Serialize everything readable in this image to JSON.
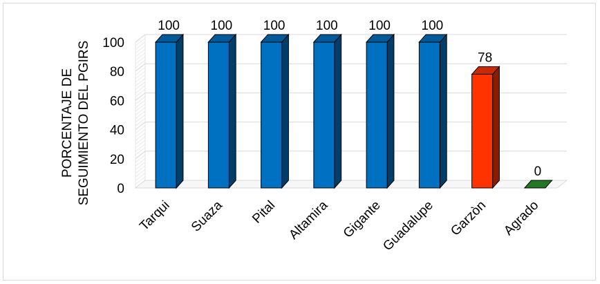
{
  "chart_data": {
    "type": "bar",
    "title": "",
    "xlabel": "",
    "ylabel_lines": [
      "PORCENTAJE DE",
      "SEGUIMIENTO DEL  PGIRS"
    ],
    "categories": [
      "Tarqui",
      "Suaza",
      "Pital",
      "Altamira",
      "Gigante",
      "Guadalupe",
      "Garzòn",
      "Agrado"
    ],
    "values": [
      100,
      100,
      100,
      100,
      100,
      100,
      78,
      0
    ],
    "data_labels": [
      "100",
      "100",
      "100",
      "100",
      "100",
      "100",
      "78",
      "0"
    ],
    "colors": [
      "#0070c0",
      "#0070c0",
      "#0070c0",
      "#0070c0",
      "#0070c0",
      "#0070c0",
      "#ff3300",
      "#33aa33"
    ],
    "ylim": [
      0,
      100
    ],
    "yticks": [
      "0",
      "20",
      "40",
      "60",
      "80",
      "100"
    ],
    "grid": true,
    "legend": "none",
    "style": "3d-column"
  }
}
